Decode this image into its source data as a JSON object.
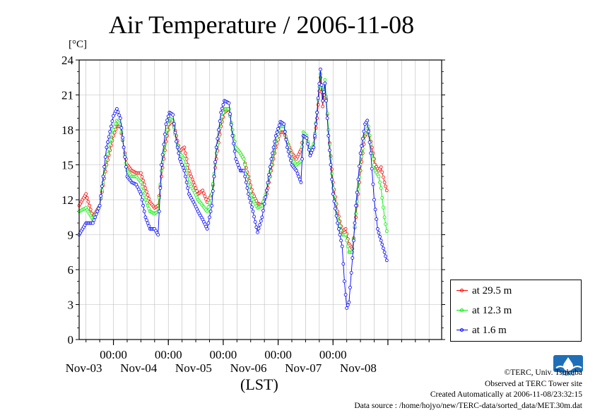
{
  "chart_data": {
    "type": "line",
    "title": "Air Temperature / 2006-11-08",
    "ylabel": "[°C]",
    "xlabel": "(LST)",
    "ylim": [
      0,
      24
    ],
    "yticks": [
      0,
      3,
      6,
      9,
      12,
      15,
      18,
      21,
      24
    ],
    "x_range": [
      "2006-11-02 09:00",
      "2006-11-08 23:30"
    ],
    "time_step_hours": 0.5,
    "x_ticks": [
      {
        "time": "2006-11-03 00:00",
        "label_time": "00:00",
        "label_date": "Nov-03"
      },
      {
        "time": "2006-11-04 00:00",
        "label_time": "00:00",
        "label_date": "Nov-04"
      },
      {
        "time": "2006-11-05 00:00",
        "label_time": "00:00",
        "label_date": "Nov-05"
      },
      {
        "time": "2006-11-06 00:00",
        "label_time": "00:00",
        "label_date": "Nov-06"
      },
      {
        "time": "2006-11-07 00:00",
        "label_time": "00:00",
        "label_date": "Nov-07"
      },
      {
        "time": "2006-11-08 00:00",
        "label_time": "",
        "label_date": "Nov-08"
      }
    ],
    "grid": true,
    "legend_position": "right",
    "series": [
      {
        "name": "at 29.5 m",
        "color": "#ff0000",
        "points": [
          [
            "2006-11-02 09:00",
            11.5
          ],
          [
            "2006-11-02 12:00",
            12.5
          ],
          [
            "2006-11-02 15:00",
            10.5
          ],
          [
            "2006-11-02 18:00",
            11.5
          ],
          [
            "2006-11-02 21:00",
            15.0
          ],
          [
            "2006-11-03 00:00",
            17.5
          ],
          [
            "2006-11-03 01:30",
            18.3
          ],
          [
            "2006-11-03 03:00",
            18.3
          ],
          [
            "2006-11-03 04:30",
            16.5
          ],
          [
            "2006-11-03 06:00",
            15.0
          ],
          [
            "2006-11-03 08:00",
            14.5
          ],
          [
            "2006-11-03 10:00",
            14.3
          ],
          [
            "2006-11-03 12:00",
            14.3
          ],
          [
            "2006-11-03 14:00",
            13.0
          ],
          [
            "2006-11-03 16:00",
            11.8
          ],
          [
            "2006-11-03 18:00",
            11.3
          ],
          [
            "2006-11-03 19:30",
            11.5
          ],
          [
            "2006-11-03 21:00",
            14.0
          ],
          [
            "2006-11-03 23:00",
            17.0
          ],
          [
            "2006-11-04 00:30",
            18.5
          ],
          [
            "2006-11-04 02:00",
            18.8
          ],
          [
            "2006-11-04 03:30",
            17.5
          ],
          [
            "2006-11-04 05:00",
            16.2
          ],
          [
            "2006-11-04 07:00",
            16.5
          ],
          [
            "2006-11-04 09:00",
            14.5
          ],
          [
            "2006-11-04 11:00",
            13.5
          ],
          [
            "2006-11-04 13:00",
            12.5
          ],
          [
            "2006-11-04 15:00",
            12.8
          ],
          [
            "2006-11-04 17:00",
            11.8
          ],
          [
            "2006-11-04 19:00",
            12.5
          ],
          [
            "2006-11-04 21:00",
            15.5
          ],
          [
            "2006-11-04 23:00",
            18.3
          ],
          [
            "2006-11-05 00:30",
            19.5
          ],
          [
            "2006-11-05 02:30",
            19.8
          ],
          [
            "2006-11-05 04:00",
            18.0
          ],
          [
            "2006-11-05 05:30",
            16.5
          ],
          [
            "2006-11-05 07:30",
            16.0
          ],
          [
            "2006-11-05 09:00",
            15.5
          ],
          [
            "2006-11-05 11:00",
            14.0
          ],
          [
            "2006-11-05 13:00",
            12.5
          ],
          [
            "2006-11-05 15:00",
            11.7
          ],
          [
            "2006-11-05 17:00",
            11.5
          ],
          [
            "2006-11-05 19:00",
            12.5
          ],
          [
            "2006-11-05 21:00",
            14.5
          ],
          [
            "2006-11-05 23:00",
            16.5
          ],
          [
            "2006-11-06 01:00",
            17.8
          ],
          [
            "2006-11-06 02:30",
            17.8
          ],
          [
            "2006-11-06 04:00",
            17.0
          ],
          [
            "2006-11-06 06:00",
            16.0
          ],
          [
            "2006-11-06 08:00",
            15.5
          ],
          [
            "2006-11-06 10:00",
            16.3
          ],
          [
            "2006-11-06 11:00",
            17.5
          ],
          [
            "2006-11-06 12:30",
            17.3
          ],
          [
            "2006-11-06 14:00",
            15.8
          ],
          [
            "2006-11-06 15:30",
            16.5
          ],
          [
            "2006-11-06 17:00",
            19.0
          ],
          [
            "2006-11-06 18:30",
            22.5
          ],
          [
            "2006-11-06 19:30",
            20.0
          ],
          [
            "2006-11-06 20:30",
            22.0
          ],
          [
            "2006-11-06 22:00",
            18.0
          ],
          [
            "2006-11-07 00:00",
            13.5
          ],
          [
            "2006-11-07 02:00",
            11.0
          ],
          [
            "2006-11-07 04:00",
            9.3
          ],
          [
            "2006-11-07 05:30",
            9.5
          ],
          [
            "2006-11-07 07:00",
            8.2
          ],
          [
            "2006-11-07 08:30",
            7.8
          ],
          [
            "2006-11-07 10:00",
            10.5
          ],
          [
            "2006-11-07 12:00",
            14.5
          ],
          [
            "2006-11-07 14:00",
            17.5
          ],
          [
            "2006-11-07 15:30",
            18.0
          ],
          [
            "2006-11-07 17:00",
            16.5
          ],
          [
            "2006-11-07 18:30",
            15.0
          ],
          [
            "2006-11-07 20:00",
            14.5
          ],
          [
            "2006-11-07 21:00",
            14.8
          ],
          [
            "2006-11-07 22:30",
            13.5
          ],
          [
            "2006-11-07 23:30",
            12.8
          ]
        ]
      },
      {
        "name": "at 12.3 m",
        "color": "#00ee00",
        "points": [
          [
            "2006-11-02 09:00",
            11.0
          ],
          [
            "2006-11-02 12:00",
            11.3
          ],
          [
            "2006-11-02 15:00",
            10.3
          ],
          [
            "2006-11-02 18:00",
            11.5
          ],
          [
            "2006-11-02 21:00",
            15.5
          ],
          [
            "2006-11-03 00:00",
            18.0
          ],
          [
            "2006-11-03 01:30",
            18.8
          ],
          [
            "2006-11-03 03:00",
            18.5
          ],
          [
            "2006-11-03 04:30",
            16.5
          ],
          [
            "2006-11-03 06:00",
            14.5
          ],
          [
            "2006-11-03 08:00",
            14.0
          ],
          [
            "2006-11-03 10:00",
            14.0
          ],
          [
            "2006-11-03 12:00",
            13.5
          ],
          [
            "2006-11-03 14:00",
            12.0
          ],
          [
            "2006-11-03 16:00",
            11.0
          ],
          [
            "2006-11-03 18:00",
            10.8
          ],
          [
            "2006-11-03 19:30",
            11.0
          ],
          [
            "2006-11-03 21:00",
            14.5
          ],
          [
            "2006-11-03 23:00",
            17.5
          ],
          [
            "2006-11-04 00:30",
            19.0
          ],
          [
            "2006-11-04 02:00",
            18.8
          ],
          [
            "2006-11-04 03:30",
            17.0
          ],
          [
            "2006-11-04 05:00",
            16.0
          ],
          [
            "2006-11-04 07:00",
            15.5
          ],
          [
            "2006-11-04 09:00",
            13.5
          ],
          [
            "2006-11-04 11:00",
            12.8
          ],
          [
            "2006-11-04 13:00",
            12.0
          ],
          [
            "2006-11-04 15:00",
            11.5
          ],
          [
            "2006-11-04 17:00",
            11.0
          ],
          [
            "2006-11-04 19:00",
            12.5
          ],
          [
            "2006-11-04 21:00",
            16.0
          ],
          [
            "2006-11-04 23:00",
            18.8
          ],
          [
            "2006-11-05 00:30",
            19.8
          ],
          [
            "2006-11-05 02:30",
            19.8
          ],
          [
            "2006-11-05 04:00",
            18.0
          ],
          [
            "2006-11-05 05:30",
            16.5
          ],
          [
            "2006-11-05 07:30",
            16.0
          ],
          [
            "2006-11-05 09:00",
            15.5
          ],
          [
            "2006-11-05 11:00",
            13.5
          ],
          [
            "2006-11-05 13:00",
            12.0
          ],
          [
            "2006-11-05 15:00",
            11.3
          ],
          [
            "2006-11-05 17:00",
            11.5
          ],
          [
            "2006-11-05 19:00",
            12.8
          ],
          [
            "2006-11-05 21:00",
            15.0
          ],
          [
            "2006-11-05 23:00",
            17.0
          ],
          [
            "2006-11-06 01:00",
            18.3
          ],
          [
            "2006-11-06 02:30",
            18.3
          ],
          [
            "2006-11-06 04:00",
            17.0
          ],
          [
            "2006-11-06 06:00",
            15.5
          ],
          [
            "2006-11-06 08:00",
            15.0
          ],
          [
            "2006-11-06 10:00",
            15.3
          ],
          [
            "2006-11-06 11:00",
            17.8
          ],
          [
            "2006-11-06 12:30",
            17.5
          ],
          [
            "2006-11-06 14:00",
            16.0
          ],
          [
            "2006-11-06 15:30",
            16.8
          ],
          [
            "2006-11-06 17:00",
            19.5
          ],
          [
            "2006-11-06 18:30",
            22.8
          ],
          [
            "2006-11-06 19:30",
            20.5
          ],
          [
            "2006-11-06 20:30",
            22.3
          ],
          [
            "2006-11-06 22:00",
            18.0
          ],
          [
            "2006-11-07 00:00",
            13.0
          ],
          [
            "2006-11-07 02:00",
            10.5
          ],
          [
            "2006-11-07 04:00",
            9.0
          ],
          [
            "2006-11-07 05:30",
            9.0
          ],
          [
            "2006-11-07 07:00",
            7.5
          ],
          [
            "2006-11-07 08:30",
            7.5
          ],
          [
            "2006-11-07 10:00",
            10.8
          ],
          [
            "2006-11-07 12:00",
            15.0
          ],
          [
            "2006-11-07 14:00",
            17.8
          ],
          [
            "2006-11-07 15:30",
            18.3
          ],
          [
            "2006-11-07 17:00",
            16.0
          ],
          [
            "2006-11-07 18:30",
            14.5
          ],
          [
            "2006-11-07 20:00",
            14.0
          ],
          [
            "2006-11-07 21:00",
            13.0
          ],
          [
            "2006-11-07 22:30",
            10.5
          ],
          [
            "2006-11-07 23:30",
            9.3
          ]
        ]
      },
      {
        "name": "at 1.6 m",
        "color": "#0000ff",
        "points": [
          [
            "2006-11-02 09:00",
            9.0
          ],
          [
            "2006-11-02 12:00",
            10.0
          ],
          [
            "2006-11-02 15:00",
            10.0
          ],
          [
            "2006-11-02 18:00",
            11.5
          ],
          [
            "2006-11-02 21:00",
            16.5
          ],
          [
            "2006-11-03 00:00",
            19.2
          ],
          [
            "2006-11-03 01:30",
            19.8
          ],
          [
            "2006-11-03 03:00",
            19.0
          ],
          [
            "2006-11-03 04:30",
            16.5
          ],
          [
            "2006-11-03 06:00",
            14.0
          ],
          [
            "2006-11-03 08:00",
            13.5
          ],
          [
            "2006-11-03 10:00",
            13.3
          ],
          [
            "2006-11-03 12:00",
            12.5
          ],
          [
            "2006-11-03 14:00",
            10.5
          ],
          [
            "2006-11-03 16:00",
            9.5
          ],
          [
            "2006-11-03 18:00",
            9.5
          ],
          [
            "2006-11-03 19:30",
            9.0
          ],
          [
            "2006-11-03 21:00",
            15.0
          ],
          [
            "2006-11-03 23:00",
            18.5
          ],
          [
            "2006-11-04 00:30",
            19.5
          ],
          [
            "2006-11-04 02:00",
            19.3
          ],
          [
            "2006-11-04 03:30",
            17.0
          ],
          [
            "2006-11-04 05:00",
            15.5
          ],
          [
            "2006-11-04 07:00",
            14.5
          ],
          [
            "2006-11-04 09:00",
            12.5
          ],
          [
            "2006-11-04 11:00",
            11.8
          ],
          [
            "2006-11-04 13:00",
            11.0
          ],
          [
            "2006-11-04 15:00",
            10.3
          ],
          [
            "2006-11-04 17:00",
            9.5
          ],
          [
            "2006-11-04 19:00",
            11.5
          ],
          [
            "2006-11-04 21:00",
            16.5
          ],
          [
            "2006-11-04 23:00",
            19.5
          ],
          [
            "2006-11-05 00:30",
            20.5
          ],
          [
            "2006-11-05 02:30",
            20.3
          ],
          [
            "2006-11-05 04:00",
            17.5
          ],
          [
            "2006-11-05 05:30",
            15.5
          ],
          [
            "2006-11-05 07:30",
            14.5
          ],
          [
            "2006-11-05 09:00",
            14.5
          ],
          [
            "2006-11-05 11:00",
            12.5
          ],
          [
            "2006-11-05 13:00",
            11.0
          ],
          [
            "2006-11-05 15:00",
            9.2
          ],
          [
            "2006-11-05 17:00",
            10.5
          ],
          [
            "2006-11-05 19:00",
            12.8
          ],
          [
            "2006-11-05 21:00",
            15.5
          ],
          [
            "2006-11-05 23:00",
            17.5
          ],
          [
            "2006-11-06 01:00",
            18.7
          ],
          [
            "2006-11-06 02:30",
            18.5
          ],
          [
            "2006-11-06 04:00",
            16.5
          ],
          [
            "2006-11-06 06:00",
            15.0
          ],
          [
            "2006-11-06 08:00",
            14.5
          ],
          [
            "2006-11-06 10:00",
            13.5
          ],
          [
            "2006-11-06 11:00",
            17.5
          ],
          [
            "2006-11-06 12:30",
            17.3
          ],
          [
            "2006-11-06 14:00",
            15.8
          ],
          [
            "2006-11-06 15:30",
            16.5
          ],
          [
            "2006-11-06 17:00",
            19.5
          ],
          [
            "2006-11-06 18:30",
            23.2
          ],
          [
            "2006-11-06 19:30",
            20.5
          ],
          [
            "2006-11-06 20:30",
            22.0
          ],
          [
            "2006-11-06 22:00",
            17.5
          ],
          [
            "2006-11-07 00:00",
            12.5
          ],
          [
            "2006-11-07 02:00",
            10.0
          ],
          [
            "2006-11-07 04:00",
            8.0
          ],
          [
            "2006-11-07 05:00",
            5.0
          ],
          [
            "2006-11-07 06:00",
            2.7
          ],
          [
            "2006-11-07 07:00",
            3.2
          ],
          [
            "2006-11-07 08:30",
            7.0
          ],
          [
            "2006-11-07 10:00",
            11.5
          ],
          [
            "2006-11-07 12:00",
            16.0
          ],
          [
            "2006-11-07 14:00",
            18.5
          ],
          [
            "2006-11-07 15:00",
            18.8
          ],
          [
            "2006-11-07 16:30",
            16.0
          ],
          [
            "2006-11-07 18:00",
            12.0
          ],
          [
            "2006-11-07 19:30",
            9.5
          ],
          [
            "2006-11-07 21:00",
            8.5
          ],
          [
            "2006-11-07 22:30",
            7.5
          ],
          [
            "2006-11-07 23:30",
            6.8
          ]
        ]
      }
    ]
  },
  "credits": {
    "copyright": "©TERC, Univ. Tsukuba",
    "observed": "Observed at TERC Tower site",
    "created": "Created Automatically at 2006-11-08/23:32:15",
    "source": "Data source : /home/hojyo/new/TERC-data/sorted_data/MET.30m.dat"
  },
  "logo": {
    "text": "TERC",
    "color": "#1f6fb8"
  }
}
